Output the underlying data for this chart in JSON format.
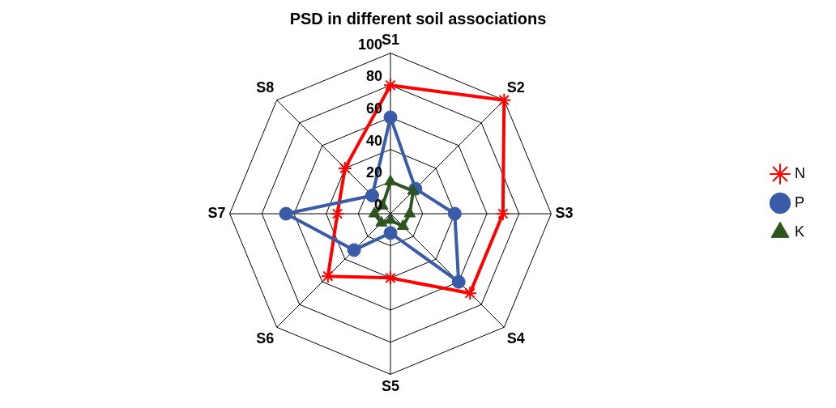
{
  "chart_data": {
    "type": "radar",
    "title": "PSD in different soil associations",
    "categories": [
      "S1",
      "S2",
      "S3",
      "S4",
      "S5",
      "S6",
      "S7",
      "S8"
    ],
    "series": [
      {
        "name": "N",
        "color": "#ff0000",
        "marker": "star",
        "values": [
          80,
          100,
          70,
          70,
          40,
          55,
          33,
          40
        ]
      },
      {
        "name": "P",
        "color": "#3a5ca8",
        "marker": "circle",
        "values": [
          60,
          22,
          40,
          60,
          12,
          32,
          65,
          16
        ]
      },
      {
        "name": "K",
        "color": "#2e5520",
        "marker": "triangle",
        "values": [
          20,
          20,
          12,
          11,
          4,
          8,
          10,
          7
        ]
      }
    ],
    "ylim": [
      0,
      100
    ],
    "yticks": [
      0,
      20,
      40,
      60,
      80,
      100
    ],
    "grid": true,
    "legend": "right"
  }
}
